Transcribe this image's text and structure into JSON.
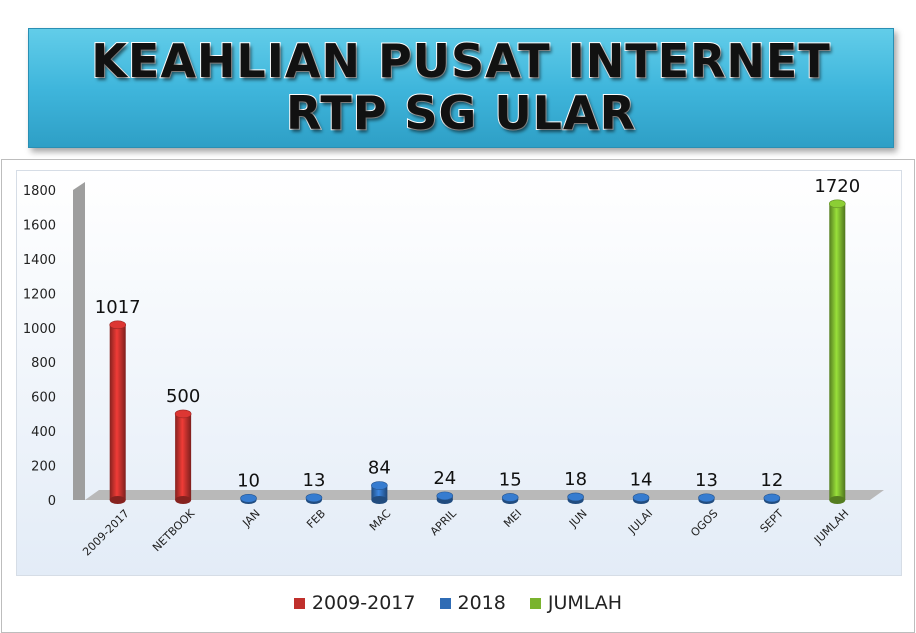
{
  "title": {
    "line1": "KEAHLIAN PUSAT INTERNET",
    "line2": "RTP SG ULAR"
  },
  "chart_data": {
    "type": "bar",
    "categories": [
      "2009-2017",
      "NETBOOK",
      "JAN",
      "FEB",
      "MAC",
      "APRIL",
      "MEI",
      "JUN",
      "JULAI",
      "OGOS",
      "SEPT",
      "JUMLAH"
    ],
    "series": [
      {
        "name": "2009-2017",
        "color": "#c0302c",
        "values": [
          1017,
          500,
          null,
          null,
          null,
          null,
          null,
          null,
          null,
          null,
          null,
          null
        ]
      },
      {
        "name": "2018",
        "color": "#2f6cb5",
        "values": [
          null,
          null,
          10,
          13,
          84,
          24,
          15,
          18,
          14,
          13,
          12,
          null
        ]
      },
      {
        "name": "JUMLAH",
        "color": "#7ab32e",
        "values": [
          null,
          null,
          null,
          null,
          null,
          null,
          null,
          null,
          null,
          null,
          null,
          1720
        ]
      }
    ],
    "data_labels": [
      "1017",
      "500",
      "10",
      "13",
      "84",
      "24",
      "15",
      "18",
      "14",
      "13",
      "12",
      "1720"
    ],
    "ylim": [
      0,
      1800
    ],
    "yticks": [
      0,
      200,
      400,
      600,
      800,
      1000,
      1200,
      1400,
      1600,
      1800
    ],
    "legend_position": "bottom",
    "grid": false
  }
}
